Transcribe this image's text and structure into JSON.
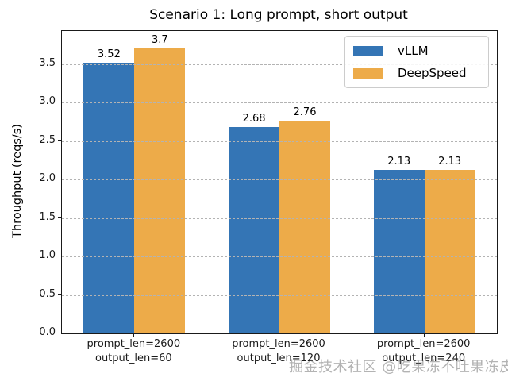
{
  "figure": {
    "watermark": "掘金技术社区 @吃果冻不吐果冻皮"
  },
  "chart_data": {
    "type": "bar",
    "title": "Scenario 1: Long prompt, short output",
    "xlabel": "",
    "ylabel": "Throughput (reqs/s)",
    "categories": [
      "prompt_len=2600\noutput_len=60",
      "prompt_len=2600\noutput_len=120",
      "prompt_len=2600\noutput_len=240"
    ],
    "series": [
      {
        "name": "vLLM",
        "color": "#3475b5",
        "values": [
          3.52,
          2.68,
          2.13
        ],
        "labels": [
          "3.52",
          "2.68",
          "2.13"
        ]
      },
      {
        "name": "DeepSpeed",
        "color": "#edab49",
        "values": [
          3.7,
          2.76,
          2.13
        ],
        "labels": [
          "3.7",
          "2.76",
          "2.13"
        ]
      }
    ],
    "yticks": [
      0.0,
      0.5,
      1.0,
      1.5,
      2.0,
      2.5,
      3.0,
      3.5
    ],
    "ylim": [
      0,
      3.93
    ],
    "grid": "horizontal-dashed-above-bars",
    "legend_position": "upper-right"
  }
}
